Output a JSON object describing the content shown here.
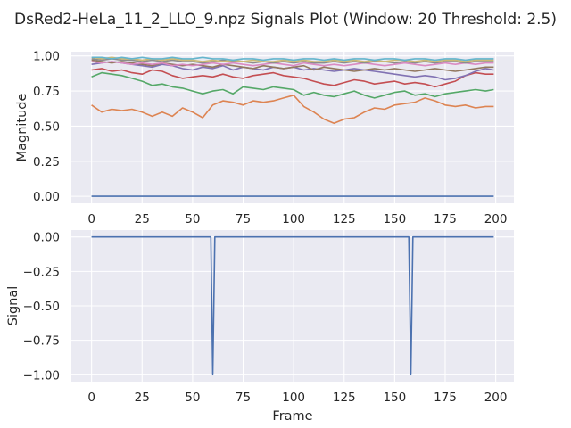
{
  "title": "DsRed2-HeLa_11_2_LLO_9.npz Signals Plot (Window: 20 Threshold: 2.5)",
  "colors": {
    "figure_bg": "#ffffff",
    "axes_bg": "#eaeaf2",
    "grid": "#ffffff",
    "text": "#262626",
    "palette": [
      "#4c72b0",
      "#dd8452",
      "#55a868",
      "#c44e52",
      "#8172b3",
      "#937860",
      "#da8bc3",
      "#8c8c8c",
      "#ccb974",
      "#64b5cd"
    ]
  },
  "chart_data": [
    {
      "type": "line",
      "ylabel": "Magnitude",
      "xlabel": "",
      "xlim": [
        -10,
        209
      ],
      "ylim": [
        -0.05,
        1.03
      ],
      "grid": true,
      "x_ticks": [
        0,
        25,
        50,
        75,
        100,
        125,
        150,
        175,
        200
      ],
      "x_tick_labels": [
        "0",
        "25",
        "50",
        "75",
        "100",
        "125",
        "150",
        "175",
        "200"
      ],
      "y_ticks": [
        0.0,
        0.25,
        0.5,
        0.75,
        1.0
      ],
      "y_tick_labels": [
        "0.00",
        "0.25",
        "0.50",
        "0.75",
        "1.00"
      ],
      "series": [
        {
          "color": "#4c72b0",
          "x": [
            0,
            199
          ],
          "y": [
            0.0,
            0.0
          ]
        },
        {
          "color": "#dd8452",
          "x": [
            0,
            5,
            10,
            15,
            20,
            25,
            30,
            35,
            40,
            45,
            50,
            55,
            60,
            65,
            70,
            75,
            80,
            85,
            90,
            95,
            100,
            105,
            110,
            115,
            120,
            125,
            130,
            135,
            140,
            145,
            150,
            155,
            160,
            165,
            170,
            175,
            180,
            185,
            190,
            195,
            199
          ],
          "y": [
            0.65,
            0.6,
            0.62,
            0.61,
            0.62,
            0.6,
            0.57,
            0.6,
            0.57,
            0.63,
            0.6,
            0.56,
            0.65,
            0.68,
            0.67,
            0.65,
            0.68,
            0.67,
            0.68,
            0.7,
            0.72,
            0.64,
            0.6,
            0.55,
            0.52,
            0.55,
            0.56,
            0.6,
            0.63,
            0.62,
            0.65,
            0.66,
            0.67,
            0.7,
            0.68,
            0.65,
            0.64,
            0.65,
            0.63,
            0.64,
            0.64
          ]
        },
        {
          "color": "#55a868",
          "x": [
            0,
            5,
            10,
            15,
            20,
            25,
            30,
            35,
            40,
            45,
            50,
            55,
            60,
            65,
            70,
            75,
            80,
            85,
            90,
            95,
            100,
            105,
            110,
            115,
            120,
            125,
            130,
            135,
            140,
            145,
            150,
            155,
            160,
            165,
            170,
            175,
            180,
            185,
            190,
            195,
            199
          ],
          "y": [
            0.85,
            0.88,
            0.87,
            0.86,
            0.84,
            0.82,
            0.79,
            0.8,
            0.78,
            0.77,
            0.75,
            0.73,
            0.75,
            0.76,
            0.73,
            0.78,
            0.77,
            0.76,
            0.78,
            0.77,
            0.76,
            0.72,
            0.74,
            0.72,
            0.71,
            0.73,
            0.75,
            0.72,
            0.7,
            0.72,
            0.74,
            0.75,
            0.72,
            0.73,
            0.71,
            0.73,
            0.74,
            0.75,
            0.76,
            0.75,
            0.76
          ]
        },
        {
          "color": "#c44e52",
          "x": [
            0,
            5,
            10,
            15,
            20,
            25,
            30,
            35,
            40,
            45,
            50,
            55,
            60,
            65,
            70,
            75,
            80,
            85,
            90,
            95,
            100,
            105,
            110,
            115,
            120,
            125,
            130,
            135,
            140,
            145,
            150,
            155,
            160,
            165,
            170,
            175,
            180,
            185,
            190,
            195,
            199
          ],
          "y": [
            0.9,
            0.91,
            0.89,
            0.9,
            0.88,
            0.87,
            0.9,
            0.89,
            0.86,
            0.84,
            0.85,
            0.86,
            0.85,
            0.87,
            0.85,
            0.84,
            0.86,
            0.87,
            0.88,
            0.86,
            0.85,
            0.84,
            0.82,
            0.8,
            0.79,
            0.81,
            0.83,
            0.82,
            0.8,
            0.81,
            0.82,
            0.8,
            0.81,
            0.8,
            0.78,
            0.8,
            0.82,
            0.86,
            0.88,
            0.87,
            0.87
          ]
        },
        {
          "color": "#8172b3",
          "x": [
            0,
            5,
            10,
            15,
            20,
            25,
            30,
            35,
            40,
            45,
            50,
            55,
            60,
            65,
            70,
            75,
            80,
            85,
            90,
            95,
            100,
            105,
            110,
            115,
            120,
            125,
            130,
            135,
            140,
            145,
            150,
            155,
            160,
            165,
            170,
            175,
            180,
            185,
            190,
            195,
            199
          ],
          "y": [
            0.94,
            0.95,
            0.96,
            0.95,
            0.94,
            0.93,
            0.92,
            0.94,
            0.93,
            0.91,
            0.9,
            0.92,
            0.91,
            0.93,
            0.9,
            0.92,
            0.91,
            0.9,
            0.92,
            0.91,
            0.92,
            0.9,
            0.91,
            0.9,
            0.89,
            0.9,
            0.91,
            0.9,
            0.89,
            0.88,
            0.87,
            0.86,
            0.85,
            0.86,
            0.85,
            0.83,
            0.84,
            0.86,
            0.89,
            0.91,
            0.9
          ]
        },
        {
          "color": "#937860",
          "x": [
            0,
            5,
            10,
            15,
            20,
            25,
            30,
            35,
            40,
            45,
            50,
            55,
            60,
            65,
            70,
            75,
            80,
            85,
            90,
            95,
            100,
            105,
            110,
            115,
            120,
            125,
            130,
            135,
            140,
            145,
            150,
            155,
            160,
            165,
            170,
            175,
            180,
            185,
            190,
            195,
            199
          ],
          "y": [
            0.97,
            0.96,
            0.95,
            0.96,
            0.95,
            0.94,
            0.93,
            0.95,
            0.94,
            0.93,
            0.94,
            0.93,
            0.92,
            0.94,
            0.93,
            0.92,
            0.91,
            0.93,
            0.92,
            0.91,
            0.92,
            0.93,
            0.9,
            0.92,
            0.91,
            0.9,
            0.89,
            0.9,
            0.91,
            0.9,
            0.91,
            0.9,
            0.89,
            0.9,
            0.91,
            0.9,
            0.89,
            0.9,
            0.91,
            0.92,
            0.92
          ]
        },
        {
          "color": "#da8bc3",
          "x": [
            0,
            5,
            10,
            15,
            20,
            25,
            30,
            35,
            40,
            45,
            50,
            55,
            60,
            65,
            70,
            75,
            80,
            85,
            90,
            95,
            100,
            105,
            110,
            115,
            120,
            125,
            130,
            135,
            140,
            145,
            150,
            155,
            160,
            165,
            170,
            175,
            180,
            185,
            190,
            195,
            199
          ],
          "y": [
            0.96,
            0.95,
            0.96,
            0.95,
            0.94,
            0.95,
            0.94,
            0.95,
            0.93,
            0.94,
            0.93,
            0.94,
            0.95,
            0.94,
            0.95,
            0.94,
            0.93,
            0.94,
            0.95,
            0.94,
            0.93,
            0.95,
            0.94,
            0.93,
            0.94,
            0.93,
            0.94,
            0.95,
            0.94,
            0.93,
            0.94,
            0.95,
            0.94,
            0.93,
            0.94,
            0.95,
            0.94,
            0.95,
            0.94,
            0.95,
            0.95
          ]
        },
        {
          "color": "#8c8c8c",
          "x": [
            0,
            5,
            10,
            15,
            20,
            25,
            30,
            35,
            40,
            45,
            50,
            55,
            60,
            65,
            70,
            75,
            80,
            85,
            90,
            95,
            100,
            105,
            110,
            115,
            120,
            125,
            130,
            135,
            140,
            145,
            150,
            155,
            160,
            165,
            170,
            175,
            180,
            185,
            190,
            195,
            199
          ],
          "y": [
            0.98,
            0.97,
            0.98,
            0.97,
            0.97,
            0.96,
            0.97,
            0.96,
            0.97,
            0.96,
            0.96,
            0.95,
            0.96,
            0.97,
            0.96,
            0.96,
            0.95,
            0.96,
            0.95,
            0.96,
            0.95,
            0.96,
            0.95,
            0.95,
            0.96,
            0.95,
            0.96,
            0.95,
            0.96,
            0.96,
            0.95,
            0.96,
            0.95,
            0.96,
            0.95,
            0.96,
            0.96,
            0.95,
            0.96,
            0.96,
            0.96
          ]
        },
        {
          "color": "#ccb974",
          "x": [
            0,
            5,
            10,
            15,
            20,
            25,
            30,
            35,
            40,
            45,
            50,
            55,
            60,
            65,
            70,
            75,
            80,
            85,
            90,
            95,
            100,
            105,
            110,
            115,
            120,
            125,
            130,
            135,
            140,
            145,
            150,
            155,
            160,
            165,
            170,
            175,
            180,
            185,
            190,
            195,
            199
          ],
          "y": [
            0.99,
            0.98,
            0.99,
            0.98,
            0.98,
            0.97,
            0.98,
            0.97,
            0.98,
            0.97,
            0.97,
            0.96,
            0.97,
            0.96,
            0.97,
            0.96,
            0.97,
            0.96,
            0.96,
            0.97,
            0.96,
            0.97,
            0.96,
            0.96,
            0.97,
            0.96,
            0.97,
            0.96,
            0.97,
            0.96,
            0.97,
            0.97,
            0.96,
            0.97,
            0.96,
            0.97,
            0.97,
            0.96,
            0.97,
            0.97,
            0.97
          ]
        },
        {
          "color": "#64b5cd",
          "x": [
            0,
            5,
            10,
            15,
            20,
            25,
            30,
            35,
            40,
            45,
            50,
            55,
            60,
            65,
            70,
            75,
            80,
            85,
            90,
            95,
            100,
            105,
            110,
            115,
            120,
            125,
            130,
            135,
            140,
            145,
            150,
            155,
            160,
            165,
            170,
            175,
            180,
            185,
            190,
            195,
            199
          ],
          "y": [
            0.99,
            0.99,
            0.98,
            0.99,
            0.98,
            0.99,
            0.98,
            0.98,
            0.99,
            0.98,
            0.98,
            0.99,
            0.98,
            0.98,
            0.97,
            0.98,
            0.98,
            0.97,
            0.98,
            0.98,
            0.97,
            0.98,
            0.98,
            0.97,
            0.98,
            0.97,
            0.98,
            0.98,
            0.97,
            0.98,
            0.98,
            0.97,
            0.98,
            0.98,
            0.97,
            0.98,
            0.98,
            0.97,
            0.98,
            0.98,
            0.98
          ]
        }
      ]
    },
    {
      "type": "line",
      "ylabel": "Signal",
      "xlabel": "Frame",
      "xlim": [
        -10,
        209
      ],
      "ylim": [
        -1.05,
        0.05
      ],
      "grid": true,
      "x_ticks": [
        0,
        25,
        50,
        75,
        100,
        125,
        150,
        175,
        200
      ],
      "x_tick_labels": [
        "0",
        "25",
        "50",
        "75",
        "100",
        "125",
        "150",
        "175",
        "200"
      ],
      "y_ticks": [
        0.0,
        -0.25,
        -0.5,
        -0.75,
        -1.0
      ],
      "y_tick_labels": [
        "0.00",
        "−0.25",
        "−0.50",
        "−0.75",
        "−1.00"
      ],
      "series": [
        {
          "color": "#4c72b0",
          "x": [
            0,
            59,
            60,
            61,
            157,
            158,
            159,
            199
          ],
          "y": [
            0,
            0,
            -1,
            0,
            0,
            -1,
            0,
            0
          ]
        }
      ]
    }
  ]
}
